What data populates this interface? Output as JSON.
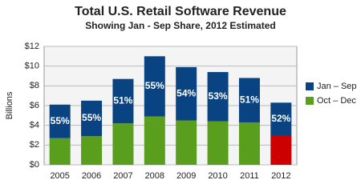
{
  "chart_data": {
    "type": "stacked_bar",
    "title": "Total U.S. Retail Software Revenue",
    "subtitle": "Showing Jan - Sep Share, 2012 Estimated",
    "y_label": "Billions",
    "categories": [
      "2005",
      "2006",
      "2007",
      "2008",
      "2009",
      "2010",
      "2011",
      "2012"
    ],
    "series": [
      {
        "name": "Oct – Dec",
        "color": "#5a9e1e",
        "colors": [
          "#5a9e1e",
          "#5a9e1e",
          "#5a9e1e",
          "#5a9e1e",
          "#5a9e1e",
          "#5a9e1e",
          "#5a9e1e",
          "#cc0000"
        ],
        "values": [
          2.7,
          2.9,
          4.2,
          4.9,
          4.5,
          4.4,
          4.3,
          3.0
        ]
      },
      {
        "name": "Jan – Sep",
        "color": "#0a4382",
        "values": [
          3.4,
          3.6,
          4.5,
          6.1,
          5.4,
          5.0,
          4.5,
          3.3
        ],
        "share_labels": [
          "55%",
          "55%",
          "51%",
          "55%",
          "54%",
          "53%",
          "51%",
          "52%"
        ]
      }
    ],
    "ylim": [
      0,
      12
    ],
    "yticks": [
      {
        "value": 0,
        "label": "$0"
      },
      {
        "value": 2,
        "label": "$2"
      },
      {
        "value": 4,
        "label": "$4"
      },
      {
        "value": 6,
        "label": "$6"
      },
      {
        "value": 8,
        "label": "$8"
      },
      {
        "value": 10,
        "label": "$10"
      },
      {
        "value": 12,
        "label": "$12"
      }
    ],
    "grid": true,
    "legend": "right"
  }
}
